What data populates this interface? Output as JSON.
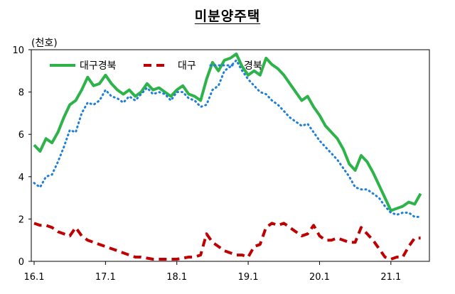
{
  "title": "미분양주택",
  "unit_label": "(천호)",
  "colors": {
    "daegu_gyeongbuk": "#2db34a",
    "daegu": "#c00000",
    "gyeongbuk": "#1f7fd6"
  },
  "chart_data": {
    "type": "line",
    "ylabel": "(천호)",
    "ylim": [
      0,
      10
    ],
    "yticks": [
      0,
      2,
      4,
      6,
      8,
      10
    ],
    "xlim": [
      0,
      66
    ],
    "xticks": [
      {
        "label": "16.1",
        "x": 0
      },
      {
        "label": "17.1",
        "x": 12
      },
      {
        "label": "18.1",
        "x": 24
      },
      {
        "label": "19.1",
        "x": 36
      },
      {
        "label": "20.1",
        "x": 48
      },
      {
        "label": "21.1",
        "x": 60
      }
    ],
    "legend_position": "top-left",
    "grid": false,
    "series": [
      {
        "name": "대구경북",
        "style": "solid",
        "values": [
          5.5,
          5.2,
          5.8,
          5.6,
          6.1,
          6.8,
          7.4,
          7.6,
          8.1,
          8.7,
          8.3,
          8.4,
          8.8,
          8.4,
          8.1,
          7.9,
          8.1,
          7.8,
          8.0,
          8.4,
          8.1,
          8.2,
          8.0,
          7.8,
          8.1,
          8.3,
          7.9,
          7.8,
          7.6,
          8.6,
          9.4,
          9.0,
          9.5,
          9.6,
          9.8,
          9.2,
          8.8,
          9.0,
          8.8,
          9.6,
          9.3,
          9.1,
          8.8,
          8.4,
          8.0,
          7.6,
          7.8,
          7.3,
          6.9,
          6.4,
          6.1,
          5.8,
          5.3,
          4.6,
          4.3,
          5.0,
          4.7,
          4.2,
          3.6,
          3.0,
          2.4,
          2.5,
          2.6,
          2.8,
          2.7,
          3.2
        ]
      },
      {
        "name": "대구",
        "style": "dash",
        "values": [
          1.8,
          1.7,
          1.7,
          1.6,
          1.4,
          1.3,
          1.2,
          1.6,
          1.2,
          1.0,
          0.9,
          0.8,
          0.7,
          0.6,
          0.5,
          0.4,
          0.3,
          0.2,
          0.2,
          0.15,
          0.1,
          0.1,
          0.1,
          0.1,
          0.1,
          0.15,
          0.2,
          0.2,
          0.3,
          1.3,
          0.9,
          0.7,
          0.5,
          0.4,
          0.3,
          0.3,
          0.2,
          0.7,
          0.8,
          1.6,
          1.8,
          1.7,
          1.8,
          1.6,
          1.4,
          1.2,
          1.3,
          1.7,
          1.2,
          1.0,
          1.0,
          1.1,
          1.0,
          0.9,
          0.9,
          1.6,
          1.3,
          1.0,
          0.6,
          0.2,
          0.1,
          0.2,
          0.2,
          0.7,
          1.1,
          1.1
        ]
      },
      {
        "name": "경북",
        "style": "dot",
        "values": [
          3.7,
          3.5,
          4.0,
          4.1,
          4.7,
          5.4,
          6.2,
          6.1,
          7.0,
          7.5,
          7.4,
          7.6,
          8.1,
          7.8,
          7.7,
          7.5,
          7.8,
          7.6,
          7.9,
          8.2,
          7.9,
          8.0,
          7.9,
          7.6,
          8.0,
          8.0,
          7.7,
          7.6,
          7.3,
          7.4,
          8.1,
          8.3,
          9.0,
          9.2,
          9.5,
          9.0,
          8.6,
          8.3,
          8.0,
          7.9,
          7.6,
          7.4,
          7.1,
          6.8,
          6.6,
          6.4,
          6.5,
          6.1,
          5.7,
          5.4,
          5.1,
          4.8,
          4.4,
          4.0,
          3.5,
          3.4,
          3.4,
          3.2,
          3.0,
          2.6,
          2.3,
          2.2,
          2.3,
          2.3,
          2.1,
          2.1
        ]
      }
    ]
  }
}
